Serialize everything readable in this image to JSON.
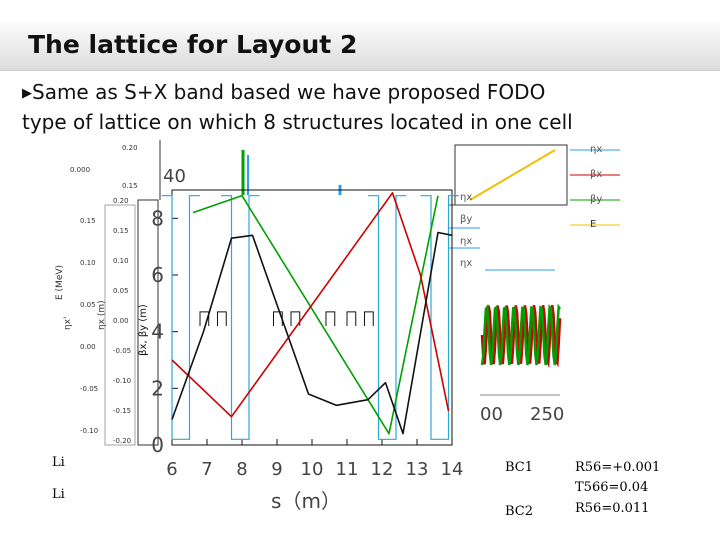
{
  "title": "The lattice for Layout 2",
  "bullet": {
    "mark": "▶",
    "line1": "Same as S+X band based we have proposed FODO",
    "line2": "type of lattice on which 8  structures located in one cell"
  },
  "chart_data": {
    "type": "line",
    "title": "",
    "xlabel": "s（m）",
    "ylabel": "βx, βy (m)",
    "x_ticks": [
      "6",
      "7",
      "8",
      "9",
      "10",
      "11",
      "12",
      "13",
      "14"
    ],
    "y_ticks": [
      "0",
      "2",
      "4",
      "6",
      "8"
    ],
    "xlim": [
      6,
      14
    ],
    "ylim": [
      0,
      9
    ],
    "series": [
      {
        "name": "",
        "color": "#00a000",
        "x": [
          6.6,
          8.0,
          12.2,
          13.6
        ],
        "y": [
          8.2,
          8.8,
          0.4,
          8.8
        ]
      },
      {
        "name": "",
        "color": "#cc0000",
        "x": [
          6.0,
          7.7,
          12.3,
          13.1,
          13.9
        ],
        "y": [
          3.0,
          1.0,
          8.9,
          6.0,
          1.2
        ]
      },
      {
        "name": "",
        "color": "#111111",
        "x": [
          6.0,
          6.9,
          7.7,
          8.3,
          9.9,
          10.7,
          11.6,
          12.1,
          12.6,
          13.6,
          14.0
        ],
        "y": [
          0.9,
          4.0,
          7.3,
          7.4,
          1.8,
          1.4,
          1.6,
          2.2,
          0.4,
          7.5,
          7.4
        ]
      }
    ],
    "behind_labels": {
      "bg_y_ticks_mid": [
        "0.15",
        "0.10",
        "0.05",
        "0.00",
        "-0.05",
        "-0.10"
      ],
      "bg_y_ticks_left": [
        "0.20",
        "0.15",
        "0.10",
        "0.05",
        "0.00",
        "-0.05",
        "-0.10",
        "-0.15",
        "-0.20"
      ],
      "bg_top_ticks": [
        "0.20",
        "0.15"
      ],
      "bg_E_label": "E (MeV)",
      "bg_eta_label": "ηx'",
      "bg_etax_label": "ηx (m)",
      "bg_big_tick": "40",
      "bg_small_tick": "0.000",
      "right_axis_ticks": [
        "00",
        "250"
      ],
      "legend_right": [
        "ηx",
        "βx",
        "βy",
        "E"
      ],
      "legend_mid": [
        "ηx",
        "βy",
        "ηx",
        "ηx"
      ]
    }
  },
  "table": {
    "left_labels": [
      "Li",
      "Li"
    ],
    "rows": [
      {
        "name": "BC1",
        "values": [
          "R56=+0.001",
          "T566=0.04"
        ]
      },
      {
        "name": "BC2",
        "values": [
          "R56=0.011"
        ]
      }
    ]
  }
}
